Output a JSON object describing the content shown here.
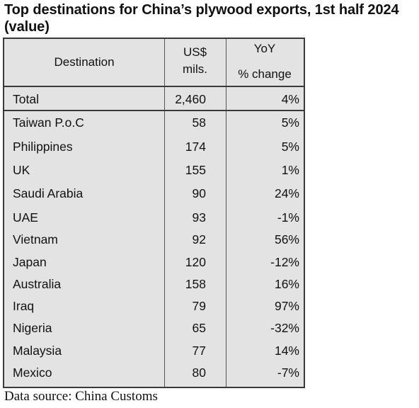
{
  "title": "Top destinations for China’s plywood exports, 1st half 2024 (value)",
  "table": {
    "headers": {
      "destination": "Destination",
      "value_line1": "US$",
      "value_line2": "mils.",
      "yoy_line1": "YoY",
      "yoy_line2": "% change"
    },
    "total": {
      "destination": "Total",
      "value": "2,460",
      "yoy": "4%"
    },
    "rows": [
      {
        "destination": "Taiwan P.o.C",
        "value": "58",
        "yoy": "5%"
      },
      {
        "destination": "Philippines",
        "value": "174",
        "yoy": "5%"
      },
      {
        "destination": "UK",
        "value": "155",
        "yoy": "1%"
      },
      {
        "destination": "Saudi Arabia",
        "value": "90",
        "yoy": "24%"
      },
      {
        "destination": "UAE",
        "value": "93",
        "yoy": "-1%"
      },
      {
        "destination": "Vietnam",
        "value": "92",
        "yoy": "56%"
      },
      {
        "destination": "Japan",
        "value": "120",
        "yoy": "-12%"
      },
      {
        "destination": "Australia",
        "value": "158",
        "yoy": "16%"
      },
      {
        "destination": "Iraq",
        "value": "79",
        "yoy": "97%"
      },
      {
        "destination": "Nigeria",
        "value": "65",
        "yoy": "-32%"
      },
      {
        "destination": "Malaysia",
        "value": "77",
        "yoy": "14%"
      },
      {
        "destination": "Mexico",
        "value": "80",
        "yoy": "-7%"
      }
    ]
  },
  "source": "Data source: China Customs"
}
